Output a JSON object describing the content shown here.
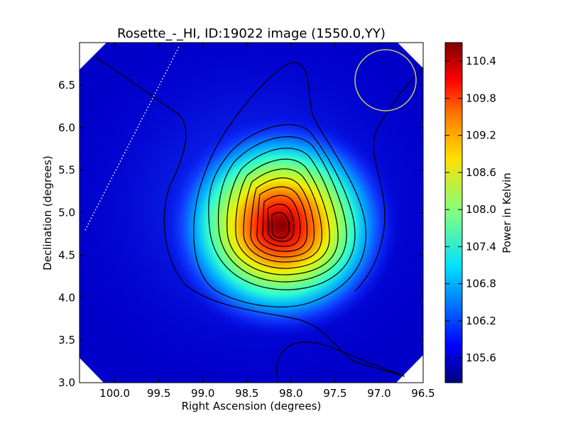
{
  "chart_data": {
    "type": "heatmap",
    "title": "Rosette_-_HI, ID:19022 image (1550.0,YY)",
    "xlabel": "Right Ascension (degrees)",
    "ylabel": "Declination (degrees)",
    "xlim": [
      100.4,
      96.5
    ],
    "ylim": [
      3.0,
      7.0
    ],
    "x_ticks": [
      100.0,
      99.5,
      99.0,
      98.5,
      98.0,
      97.5,
      97.0,
      96.5
    ],
    "x_tick_labels": [
      "100.0",
      "99.5",
      "99.0",
      "98.5",
      "98.0",
      "97.5",
      "97.0",
      "96.5"
    ],
    "y_ticks": [
      3.0,
      3.5,
      4.0,
      4.5,
      5.0,
      5.5,
      6.0,
      6.5
    ],
    "y_tick_labels": [
      "3.0",
      "3.5",
      "4.0",
      "4.5",
      "5.0",
      "5.5",
      "6.0",
      "6.5"
    ],
    "colorbar": {
      "label": "Power in Kelvin",
      "range": [
        105.2,
        110.7
      ],
      "ticks": [
        105.6,
        106.2,
        106.8,
        107.4,
        108.0,
        108.6,
        109.2,
        109.8,
        110.4
      ],
      "tick_labels": [
        "105.6",
        "106.2",
        "106.8",
        "107.4",
        "108.0",
        "108.6",
        "109.2",
        "109.8",
        "110.4"
      ],
      "colormap": "jet"
    },
    "source_peak": {
      "ra": 98.08,
      "dec": 4.85,
      "value": 110.6
    },
    "background_level": 105.4,
    "contour_color": "#000000",
    "beam_circle": {
      "ra": 96.85,
      "dec": 6.55,
      "color": "#c8c864"
    },
    "dotted_line": {
      "from": [
        100.38,
        4.8
      ],
      "to": [
        99.33,
        6.95
      ],
      "color": "#ffffff"
    },
    "grid": false
  }
}
